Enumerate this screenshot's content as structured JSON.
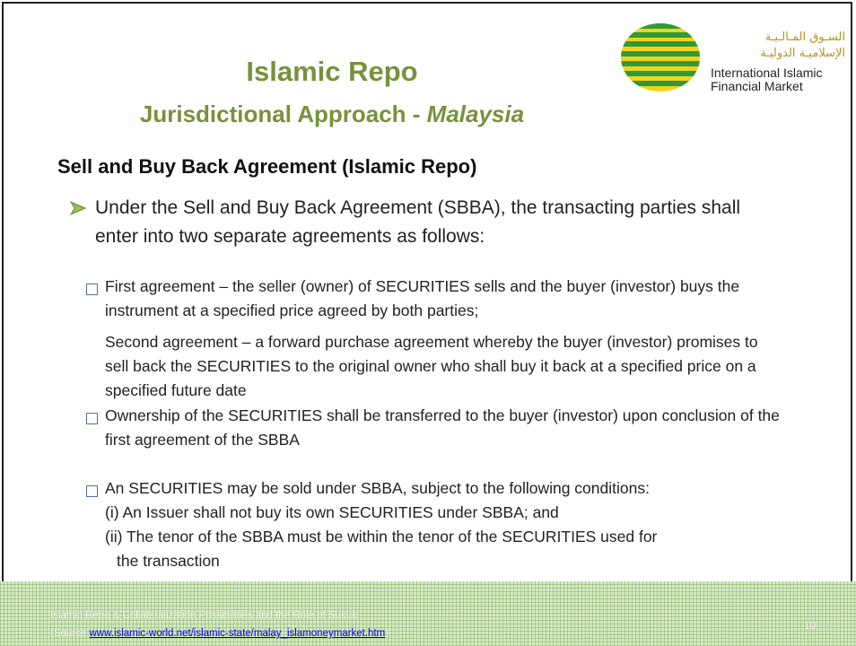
{
  "header": {
    "title": "Islamic Repo",
    "subtitle_main": "Jurisdictional Approach -",
    "subtitle_italic": "Malaysia"
  },
  "logo": {
    "arabic_lines": [
      "السـوق المـالـيـة",
      "الإسلاميـة الدوليـة"
    ],
    "english_lines": [
      "International Islamic",
      "Financial Market"
    ]
  },
  "heading": "Sell and Buy Back Agreement (Islamic Repo)",
  "intro": "Under the Sell and Buy Back Agreement (SBBA), the transacting parties shall enter into two  separate agreements as follows:",
  "items": [
    {
      "text": "First agreement – the seller (owner) of SECURITIES sells and the buyer (investor) buys the instrument at a specified price agreed by both parties;",
      "continuation": "Second agreement – a forward purchase agreement whereby the buyer (investor) promises to sell back the SECURITIES to the original owner who shall buy it back at a specified price on a specified future date"
    },
    {
      "text": "Ownership of the SECURITIES shall be transferred to the buyer (investor) upon conclusion of the first agreement of the SBBA"
    },
    {
      "text": "An SECURITIES may be sold under SBBA, subject to the following conditions:",
      "conditions": [
        "(i)  An Issuer shall not buy its own SECURITIES under SBBA; and",
        "(ii) The tenor of the SBBA must be within the tenor of the SECURITIES used for the transaction"
      ]
    }
  ],
  "footer": {
    "line1": "Islamic Repo & Collateralization Possibilities and the Role of Sukuk",
    "source_open": "(Source ",
    "source_link": "www.islamic-world.net/islamic-state/malay_islamoneymarket.htm",
    "source_close": ")",
    "page_number": "10"
  }
}
